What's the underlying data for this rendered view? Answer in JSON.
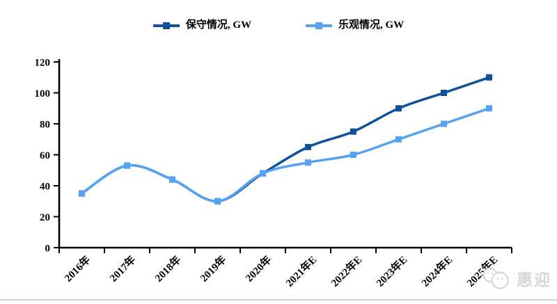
{
  "chart_data": {
    "type": "line",
    "title": "",
    "xlabel": "",
    "ylabel": "",
    "categories": [
      "2016年",
      "2017年",
      "2018年",
      "2019年",
      "2020年",
      "2021年E",
      "2022年E",
      "2023年E",
      "2024年E",
      "2025年E"
    ],
    "series": [
      {
        "name": "保守情况, GW",
        "color": "#10519C",
        "marker": "square",
        "values": [
          35,
          53,
          44,
          30,
          48,
          65,
          75,
          90,
          100,
          110
        ]
      },
      {
        "name": "乐观情况, GW",
        "color": "#55A2F0",
        "marker": "square",
        "values": [
          35,
          53,
          44,
          30,
          48,
          55,
          60,
          70,
          80,
          90
        ]
      }
    ],
    "ylim": [
      0,
      120
    ],
    "ytick_step": 20,
    "yticks": [
      0,
      20,
      40,
      60,
      80,
      100,
      120
    ],
    "grid": false,
    "smooth": true,
    "legend_position": "top-center",
    "axis_color": "#000000",
    "tick_label_color": "#000000"
  },
  "watermark": {
    "icon": "chat-bubbles-logo",
    "text": "惠迎",
    "color": "#d6d6d6"
  }
}
